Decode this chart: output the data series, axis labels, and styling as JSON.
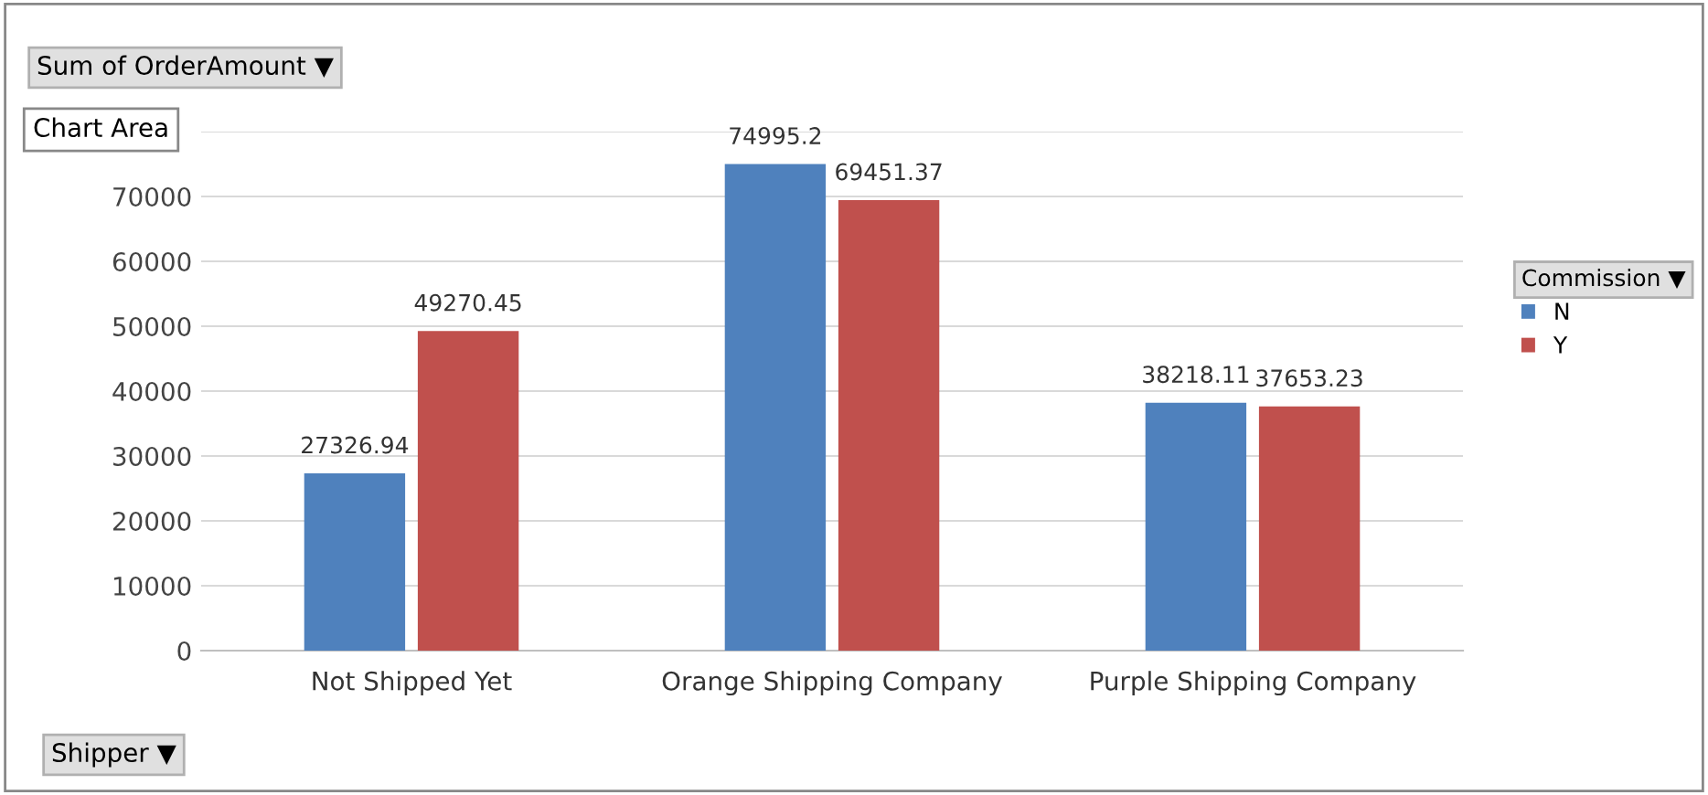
{
  "chart_data": {
    "type": "bar",
    "title": "Sum of OrderAmount ▼",
    "xlabel": "Shipper ▼",
    "legend_title": "Commission ▼",
    "categories": [
      "Not Shipped Yet",
      "Orange Shipping Company",
      "Purple Shipping Company"
    ],
    "series": [
      {
        "name": "N",
        "color": "#4f81bd",
        "values": [
          27326.94,
          74995.2,
          38218.11
        ]
      },
      {
        "name": "Y",
        "color": "#c0504d",
        "values": [
          49270.45,
          69451.37,
          37653.23
        ]
      }
    ],
    "ylim": [
      0,
      80000
    ],
    "yticks": [
      0,
      10000,
      20000,
      30000,
      40000,
      50000,
      60000,
      70000,
      {
        "value": 80000,
        "label": null
      }
    ],
    "annotations": [
      "Chart Area"
    ],
    "data_labels": true,
    "grid": "y",
    "legend": "right"
  }
}
